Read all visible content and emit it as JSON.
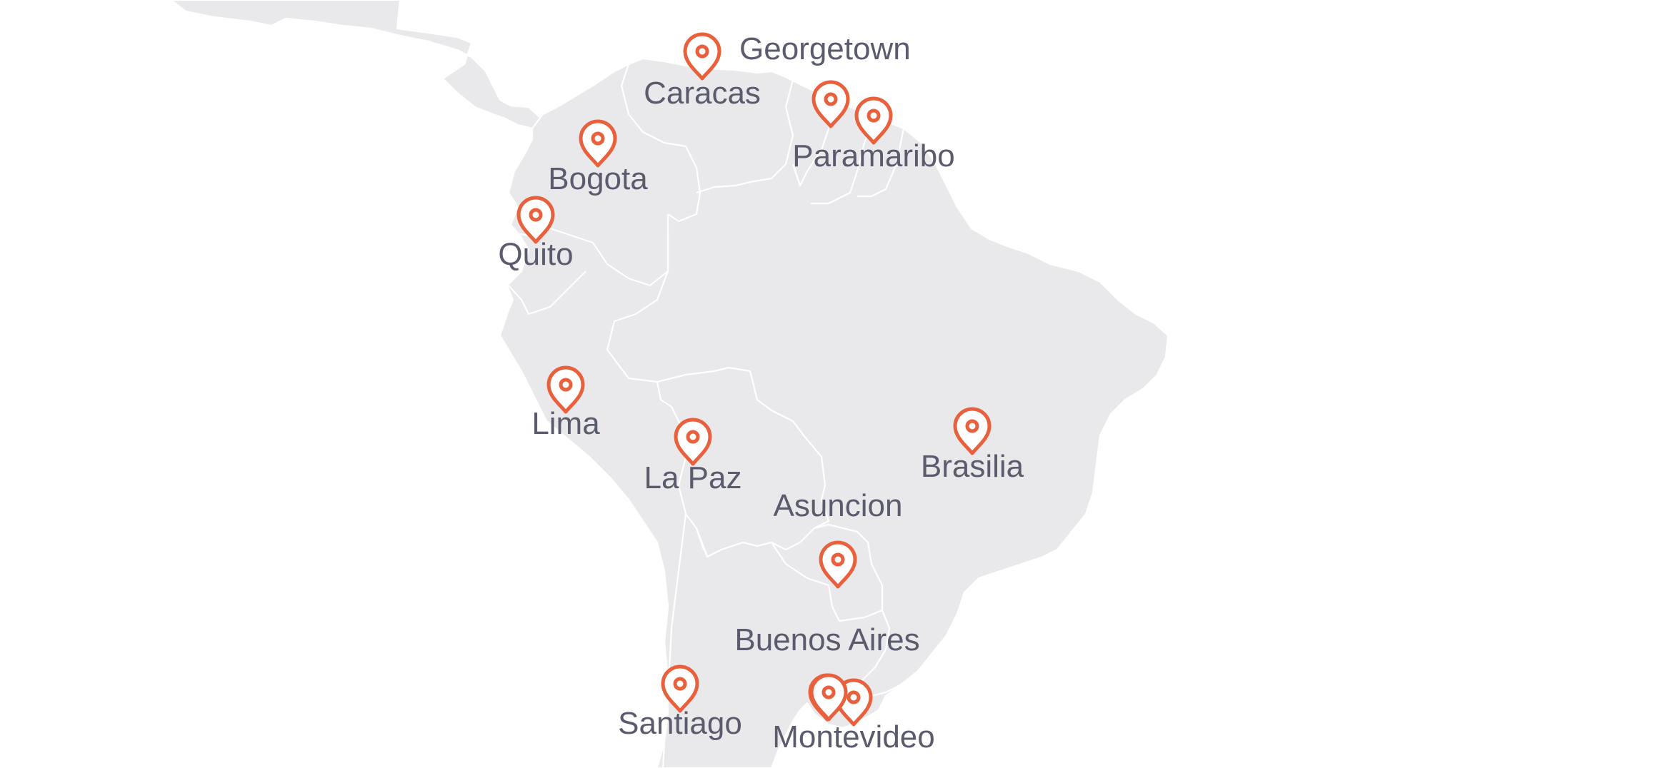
{
  "map": {
    "region": "South America",
    "land_color": "#e9e9eb",
    "border_color": "#ffffff",
    "label_color": "#5b5b6e",
    "marker_color": "#e8603c",
    "marker_icon": "map-pin-icon",
    "cities": [
      {
        "name": "Georgetown"
      },
      {
        "name": "Caracas"
      },
      {
        "name": "Paramaribo"
      },
      {
        "name": "Bogota"
      },
      {
        "name": "Quito"
      },
      {
        "name": "Lima"
      },
      {
        "name": "La Paz"
      },
      {
        "name": "Brasilia"
      },
      {
        "name": "Asuncion"
      },
      {
        "name": "Buenos Aires"
      },
      {
        "name": "Santiago"
      },
      {
        "name": "Montevideo"
      }
    ]
  }
}
